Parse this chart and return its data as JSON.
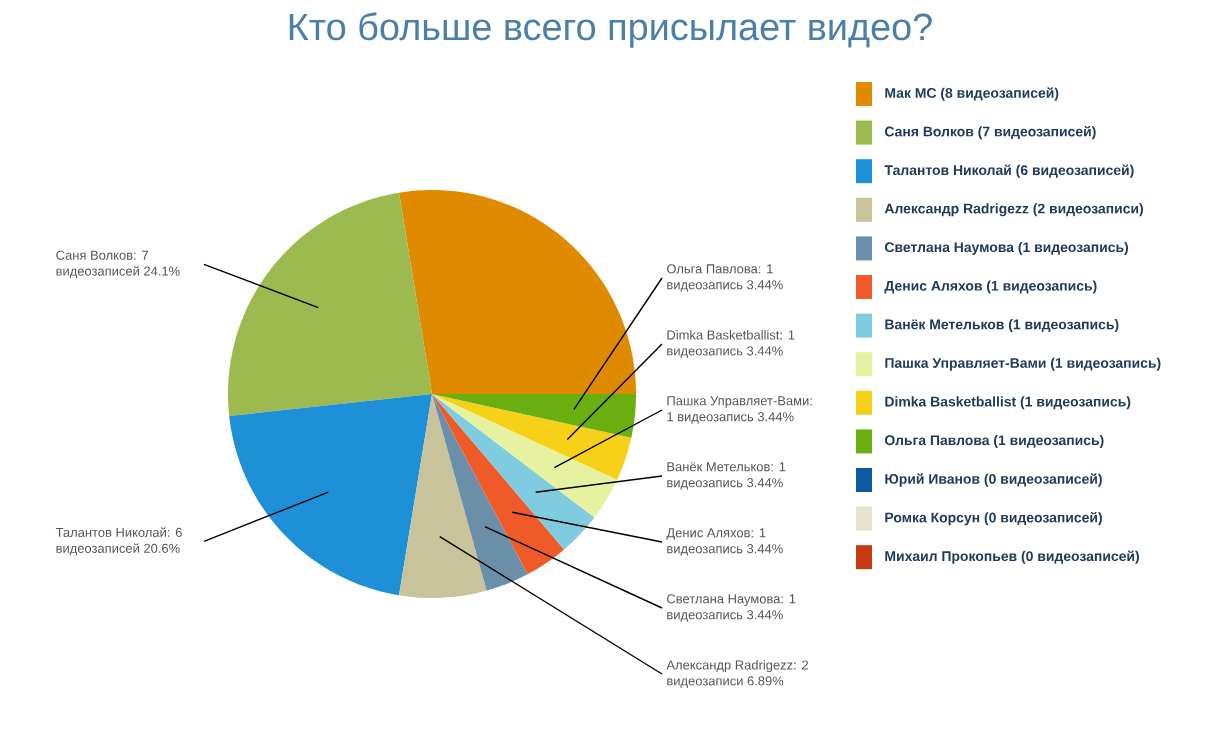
{
  "chart_data": {
    "type": "pie",
    "title": "Кто больше всего присылает видео?",
    "legend": "right",
    "categories": [
      "Мак МС (8 видеозаписей)",
      "Саня Волков (7 видеозаписей)",
      "Талантов Николай (6 видеозаписей)",
      "Александр Radrigezz (2 видеозаписи)",
      "Светлана Наумова (1 видеозапись)",
      "Денис Аляхов (1 видеозапись)",
      "Ванёк Метельков (1 видеозапись)",
      "Пашка Управляет-Вами (1 видеозапись)",
      "Dimka Basketballist (1 видеозапись)",
      "Ольга Павлова (1 видеозапись)",
      "Юрий Иванов (0 видеозаписей)",
      "Ромка Корсун (0 видеозаписей)",
      "Михаил Прокопьев (0 видеозаписей)"
    ],
    "values": [
      8,
      7,
      6,
      2,
      1,
      1,
      1,
      1,
      1,
      1,
      0,
      0,
      0
    ],
    "colors": [
      "#e08a00",
      "#9cba4f",
      "#1e90d8",
      "#c8c39a",
      "#6b8fa8",
      "#ef5a28",
      "#7fcbe0",
      "#e6f2a0",
      "#f7d117",
      "#6aae10",
      "#0a5aa8",
      "#e8e2c8",
      "#c83a10"
    ],
    "value_labels": [
      null,
      "Саня Волков: 7 видеозаписей 24.1%",
      "Талантов Николай: 6 видеозаписей 20.6%",
      "Александр Radrigezz: 2 видеозаписи 6.89%",
      "Светлана Наумова: 1 видеозапись 3.44%",
      "Денис Аляхов: 1 видеозапись 3.44%",
      "Ванёк Метельков: 1 видеозапись 3.44%",
      "Пашка Управляет-Вами: 1 видеозапись 3.44%",
      "Dimka Basketballist: 1 видеозапись 3.44%",
      "Ольга Павлова: 1 видеозапись 3.44%",
      null,
      null,
      null
    ]
  }
}
